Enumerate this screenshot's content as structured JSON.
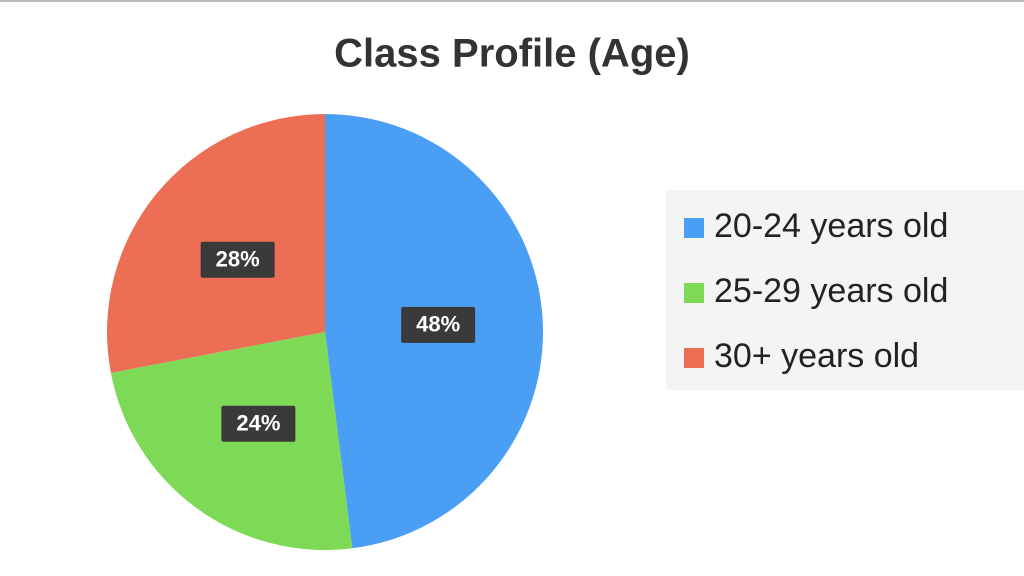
{
  "chart_data": {
    "type": "pie",
    "title": "Class Profile (Age)",
    "categories": [
      "20-24 years old",
      "25-29 years old",
      "30+ years old"
    ],
    "values": [
      48,
      24,
      28
    ],
    "value_labels": [
      "48%",
      "24%",
      "28%"
    ],
    "colors": [
      "#4a9ff5",
      "#7ed957",
      "#ec6f55"
    ],
    "legend": "right"
  }
}
